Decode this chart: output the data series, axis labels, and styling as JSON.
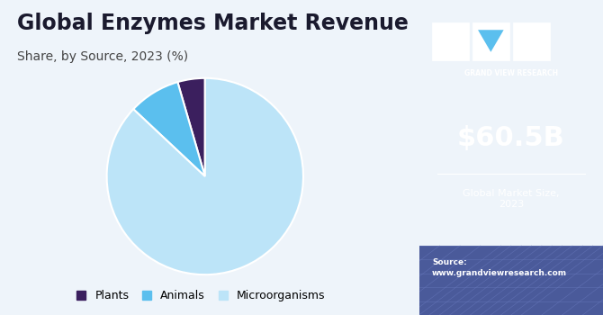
{
  "title": "Global Enzymes Market Revenue",
  "subtitle": "Share, by Source, 2023 (%)",
  "pie_values": [
    4.5,
    8.5,
    87.0
  ],
  "pie_labels": [
    "Plants",
    "Animals",
    "Microorganisms"
  ],
  "pie_colors": [
    "#3b1f5e",
    "#5bbfee",
    "#bce4f8"
  ],
  "pie_startangle": 90,
  "left_bg": "#eef4fa",
  "right_bg": "#3b1a5a",
  "right_bg_gradient_bottom": "#5a6fa8",
  "market_size_value": "$60.5B",
  "market_size_label": "Global Market Size,\n2023",
  "source_label": "Source:\nwww.grandviewresearch.com",
  "brand_name": "GRAND VIEW RESEARCH",
  "title_color": "#1a1a2e",
  "subtitle_color": "#444444",
  "legend_fontsize": 9,
  "title_fontsize": 17,
  "subtitle_fontsize": 10
}
